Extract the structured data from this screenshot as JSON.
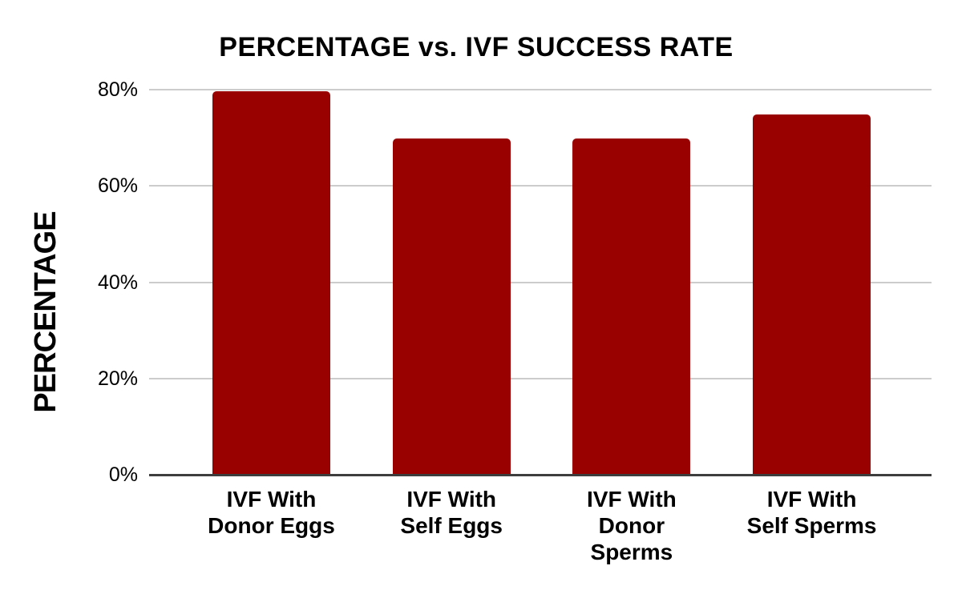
{
  "chart_data": {
    "type": "bar",
    "title": "PERCENTAGE vs. IVF SUCCESS RATE",
    "xlabel": "",
    "ylabel": "PERCENTAGE",
    "categories": [
      "IVF With Donor Eggs",
      "IVF With Self Eggs",
      "IVF With Donor Sperms",
      "IVF With Self Sperms"
    ],
    "category_lines": [
      [
        "IVF With",
        "Donor Eggs"
      ],
      [
        "IVF With",
        "Self Eggs"
      ],
      [
        "IVF With",
        "Donor",
        "Sperms"
      ],
      [
        "IVF With",
        "Self Sperms"
      ]
    ],
    "values": [
      79.7,
      69.8,
      69.8,
      74.8
    ],
    "ylim": [
      0,
      80
    ],
    "yticks": [
      {
        "label": "0%",
        "value": 0
      },
      {
        "label": "20%",
        "value": 20
      },
      {
        "label": "40%",
        "value": 40
      },
      {
        "label": "60%",
        "value": 60
      },
      {
        "label": "80%",
        "value": 80
      }
    ],
    "grid": true,
    "legend_position": "none",
    "style": {
      "bar_color": "#990000",
      "gridline_color": "#cccccc",
      "axis_line_color": "#3d3d3d",
      "text_color": "#000000",
      "background": "#ffffff"
    }
  }
}
